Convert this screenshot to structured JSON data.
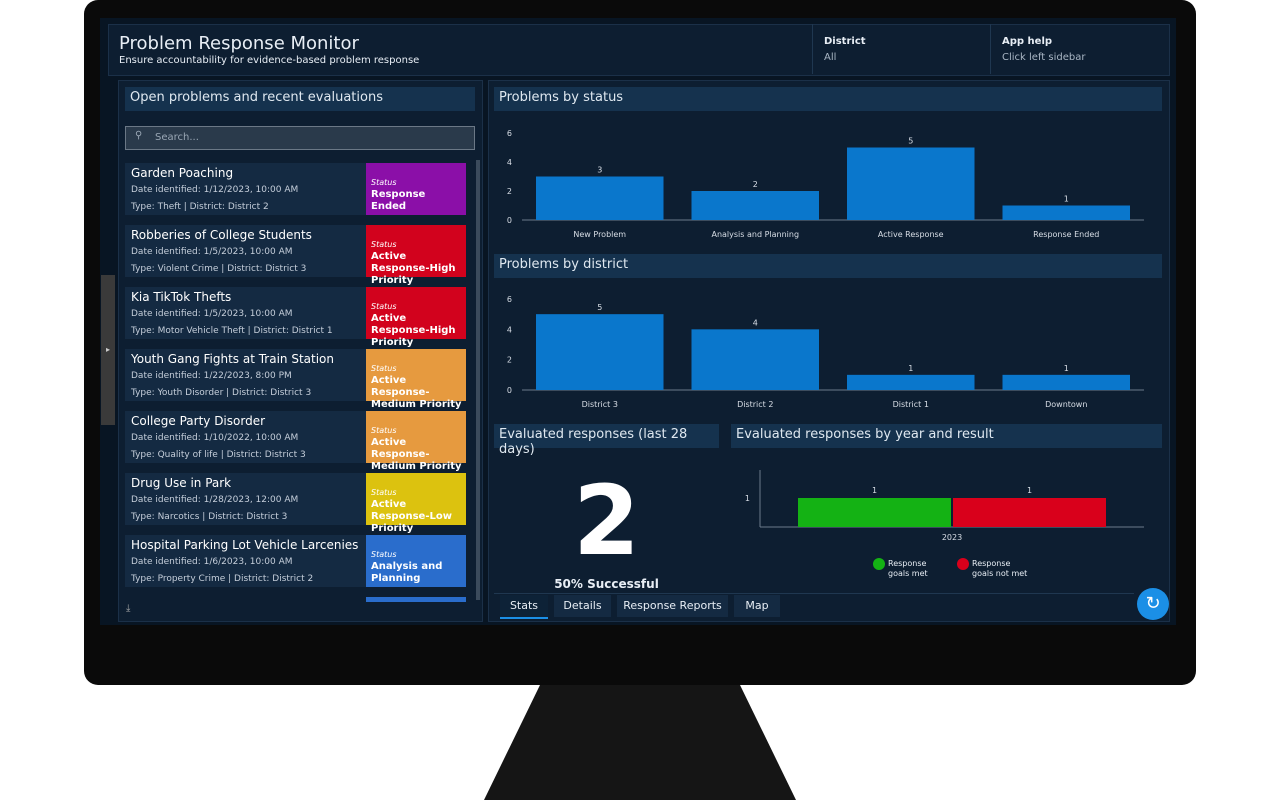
{
  "header": {
    "title": "Problem Response Monitor",
    "subtitle": "Ensure accountability for evidence-based problem response"
  },
  "filters": [
    {
      "label": "District",
      "value": "All"
    },
    {
      "label": "App help",
      "value": "Click left sidebar"
    }
  ],
  "list_panel": {
    "title": "Open problems and recent evaluations",
    "search_placeholder": "Search...",
    "items": [
      {
        "name": "Garden Poaching",
        "date": "Date identified: 1/12/2023, 10:00 AM",
        "type": "Type: Theft | District: District 2",
        "status_label": "Status",
        "status": "Response Ended",
        "color": "#8b0fa8"
      },
      {
        "name": "Robberies of College Students",
        "date": "Date identified: 1/5/2023, 10:00 AM",
        "type": "Type: Violent Crime | District: District 3",
        "status_label": "Status",
        "status": "Active Response-High Priority",
        "color": "#d2021d"
      },
      {
        "name": "Kia TikTok Thefts",
        "date": "Date identified: 1/5/2023, 10:00 AM",
        "type": "Type: Motor Vehicle Theft | District: District 1",
        "status_label": "Status",
        "status": "Active Response-High Priority",
        "color": "#d2021d"
      },
      {
        "name": "Youth Gang Fights at Train Station",
        "date": "Date identified: 1/22/2023, 8:00 PM",
        "type": "Type: Youth Disorder | District: District 3",
        "status_label": "Status",
        "status": "Active Response-Medium Priority",
        "color": "#e69a3f"
      },
      {
        "name": "College Party Disorder",
        "date": "Date identified: 1/10/2022, 10:00 AM",
        "type": "Type: Quality of life | District: District 3",
        "status_label": "Status",
        "status": "Active Response-Medium Priority",
        "color": "#e69a3f"
      },
      {
        "name": "Drug Use in Park",
        "date": "Date identified: 1/28/2023, 12:00 AM",
        "type": "Type: Narcotics | District: District 3",
        "status_label": "Status",
        "status": "Active Response-Low Priority",
        "color": "#dcc20f"
      },
      {
        "name": "Hospital Parking Lot Vehicle Larcenies",
        "date": "Date identified: 1/6/2023, 10:00 AM",
        "type": "Type: Property Crime | District: District 2",
        "status_label": "Status",
        "status": "Analysis and Planning",
        "color": "#2a6dcc"
      }
    ]
  },
  "charts": {
    "status": {
      "type": "bar",
      "title": "Problems by status",
      "categories": [
        "New Problem",
        "Analysis and Planning",
        "Active Response",
        "Response Ended"
      ],
      "values": [
        3,
        2,
        5,
        1
      ],
      "color": "#0a77cc",
      "ylim": [
        0,
        6
      ],
      "yticks": [
        0,
        2,
        4,
        6
      ]
    },
    "district": {
      "type": "bar",
      "title": "Problems by district",
      "categories": [
        "District 3",
        "District 2",
        "District 1",
        "Downtown"
      ],
      "values": [
        5,
        4,
        1,
        1
      ],
      "color": "#0a77cc",
      "ylim": [
        0,
        6
      ],
      "yticks": [
        0,
        2,
        4,
        6
      ]
    },
    "evaluated": {
      "title": "Evaluated responses (last 28 days)",
      "value": 2,
      "caption": "50% Successful"
    },
    "by_year": {
      "type": "bar",
      "title": "Evaluated responses by year and result",
      "categories": [
        "2023"
      ],
      "series": [
        {
          "name": "Response goals met",
          "color": "#14b214",
          "values": [
            1
          ]
        },
        {
          "name": "Response goals not met",
          "color": "#d9001b",
          "values": [
            1
          ]
        }
      ],
      "ylim": [
        0,
        1
      ],
      "yticks": [
        1
      ]
    }
  },
  "tabs": [
    "Stats",
    "Details",
    "Response Reports",
    "Map"
  ]
}
